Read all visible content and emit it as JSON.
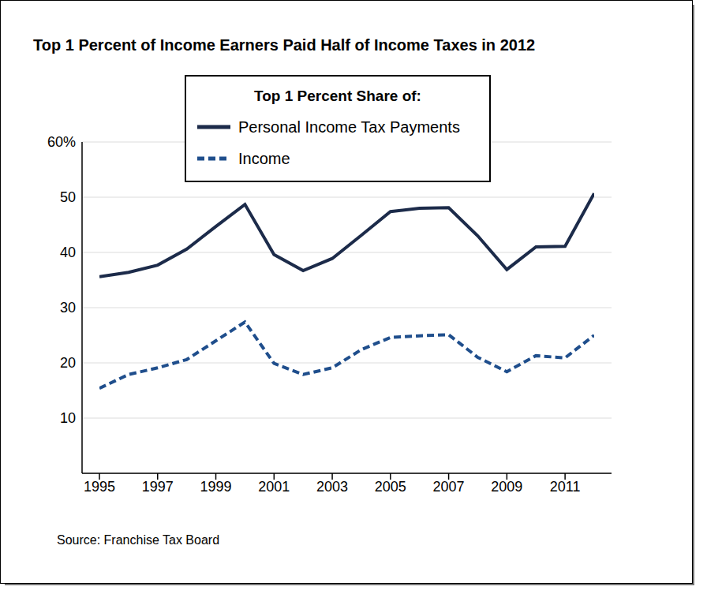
{
  "chart_data": {
    "type": "line",
    "title": "Top 1 Percent of Income Earners Paid Half of Income Taxes in 2012",
    "legend_title": "Top 1 Percent Share of:",
    "source": "Source: Franchise Tax Board",
    "x": [
      1995,
      1996,
      1997,
      1998,
      1999,
      2000,
      2001,
      2002,
      2003,
      2004,
      2005,
      2006,
      2007,
      2008,
      2009,
      2010,
      2011,
      2012
    ],
    "xlim": [
      1995,
      2012
    ],
    "xticks": [
      1995,
      1997,
      1999,
      2001,
      2003,
      2005,
      2007,
      2009,
      2011
    ],
    "ylim": [
      0,
      60
    ],
    "yticks": [
      10,
      20,
      30,
      40,
      50,
      {
        "value": 60,
        "label": "60%"
      }
    ],
    "grid": true,
    "legend": "top",
    "marker": "none",
    "series": [
      {
        "name": "Personal Income Tax Payments",
        "color": "#1c2b4a",
        "line_style": "solid",
        "values": [
          35.6,
          36.4,
          37.7,
          40.6,
          44.7,
          48.7,
          39.6,
          36.7,
          38.9,
          43.1,
          47.4,
          48.0,
          48.1,
          43.0,
          36.9,
          41.0,
          41.1,
          50.7
        ]
      },
      {
        "name": "Income",
        "color": "#1f4e8c",
        "line_style": "dashed",
        "values": [
          15.4,
          17.9,
          19.1,
          20.6,
          24.0,
          27.4,
          19.9,
          17.9,
          19.1,
          22.4,
          24.6,
          24.9,
          25.1,
          21.0,
          18.4,
          21.3,
          20.9,
          25.0
        ]
      }
    ]
  }
}
